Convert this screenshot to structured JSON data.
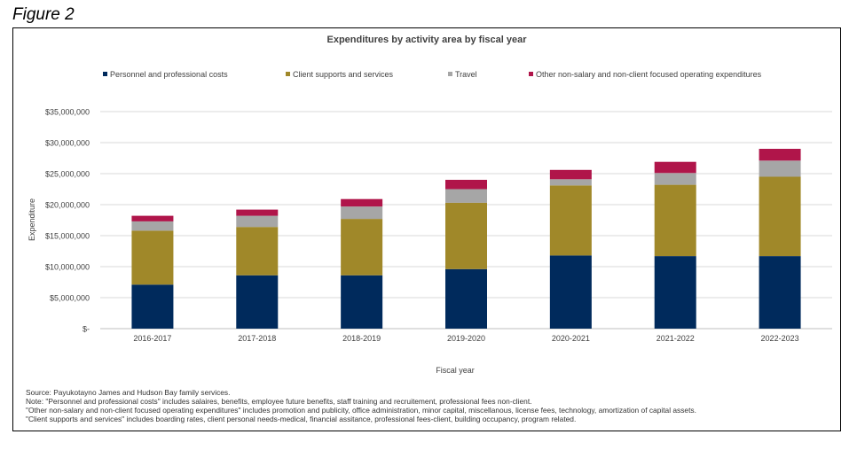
{
  "figure_label": "Figure 2",
  "colors": {
    "personnel": "#002A5C",
    "client": "#A08829",
    "travel": "#A6A6A6",
    "other": "#B0154A",
    "grid": "#D9D9D9",
    "axis": "#BFBFBF"
  },
  "chart_data": {
    "type": "bar",
    "stacked": true,
    "title": "Expenditures by activity area by fiscal year",
    "xlabel": "Fiscal year",
    "ylabel": "Expenditure",
    "ylim": [
      0,
      35000000
    ],
    "yticks": [
      0,
      5000000,
      10000000,
      15000000,
      20000000,
      25000000,
      30000000,
      35000000
    ],
    "ytick_labels": [
      "$-",
      "$5,000,000",
      "$10,000,000",
      "$15,000,000",
      "$20,000,000",
      "$25,000,000",
      "$30,000,000",
      "$35,000,000"
    ],
    "legend_position": "top",
    "categories": [
      "2016-2017",
      "2017-2018",
      "2018-2019",
      "2019-2020",
      "2020-2021",
      "2021-2022",
      "2022-2023"
    ],
    "series": [
      {
        "key": "personnel",
        "name": "Personnel and professional costs",
        "values": [
          7100000,
          8600000,
          8600000,
          9600000,
          11800000,
          11700000,
          11700000
        ]
      },
      {
        "key": "client",
        "name": "Client supports and services",
        "values": [
          8700000,
          7800000,
          9100000,
          10700000,
          11300000,
          11500000,
          12800000
        ]
      },
      {
        "key": "travel",
        "name": "Travel",
        "values": [
          1500000,
          1800000,
          2000000,
          2200000,
          1000000,
          1900000,
          2600000
        ]
      },
      {
        "key": "other",
        "name": "Other non-salary and non-client focused operating expenditures",
        "values": [
          900000,
          1000000,
          1200000,
          1500000,
          1500000,
          1800000,
          1900000
        ]
      }
    ]
  },
  "notes": [
    "Source: Payukotayno James and Hudson Bay family services.",
    "Note: \"Personnel and professional costs\" includes salaires, benefits, employee future benefits, staff training and recruitement, professional fees non-client.",
    "\"Other non-salary and non-client focused operating expenditures\" includes promotion and publicity, office administration, minor capital, miscellanous, license fees, technology, amortization of capital assets.",
    "\"Client supports and services\" includes boarding rates, client personal needs-medical, financial assitance, professional fees-client, building occupancy, program related."
  ]
}
